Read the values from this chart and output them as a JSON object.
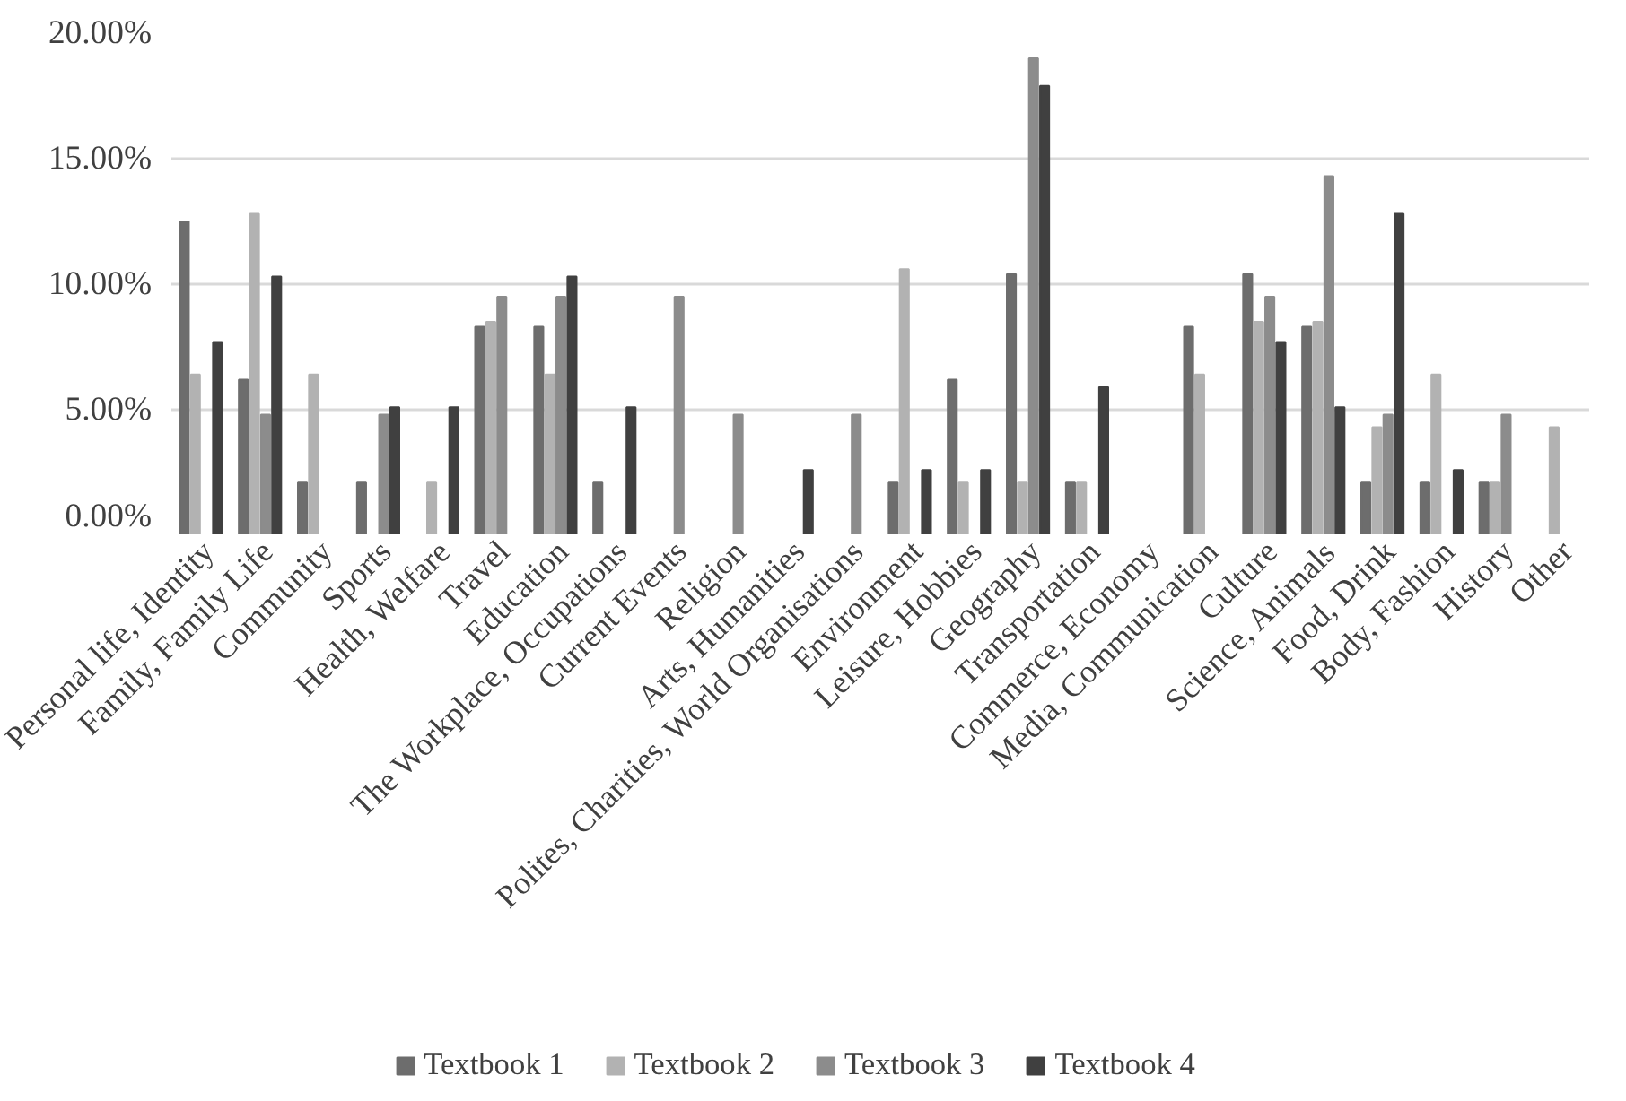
{
  "chart_data": {
    "type": "bar",
    "categories": [
      "Personal life, Identity",
      "Family, Family Life",
      "Community",
      "Sports",
      "Health, Welfare",
      "Travel",
      "Education",
      "The Workplace, Occupations",
      "Current Events",
      "Religion",
      "Arts, Humanities",
      "Polites, Charities, World Organisations",
      "Environment",
      "Leisure, Hobbies",
      "Geography",
      "Transportation",
      "Commerce, Economy",
      "Media, Communication",
      "Culture",
      "Science, Animals",
      "Food, Drink",
      "Body, Fashion",
      "History",
      "Other"
    ],
    "series": [
      {
        "name": "Textbook 1",
        "color": "#6d6d6d",
        "values": [
          12.5,
          6.2,
          2.1,
          2.1,
          0,
          8.3,
          8.3,
          2.1,
          0,
          0,
          0,
          0,
          2.1,
          6.2,
          10.4,
          2.1,
          0,
          8.3,
          10.4,
          8.3,
          2.1,
          2.1,
          2.1,
          0
        ]
      },
      {
        "name": "Textbook 2",
        "color": "#b2b2b2",
        "values": [
          6.4,
          12.8,
          6.4,
          0,
          2.1,
          8.5,
          6.4,
          0,
          0,
          0,
          0,
          0,
          10.6,
          2.1,
          2.1,
          2.1,
          0,
          6.4,
          8.5,
          8.5,
          4.3,
          6.4,
          2.1,
          4.3
        ]
      },
      {
        "name": "Textbook 3",
        "color": "#8c8c8c",
        "values": [
          0,
          4.8,
          0,
          4.8,
          0,
          9.5,
          9.5,
          0,
          9.5,
          4.8,
          0,
          4.8,
          0,
          0,
          19.0,
          0,
          0,
          0,
          9.5,
          14.3,
          4.8,
          0,
          4.8,
          0
        ]
      },
      {
        "name": "Textbook 4",
        "color": "#404040",
        "values": [
          7.7,
          10.3,
          0,
          5.1,
          5.1,
          0,
          10.3,
          5.1,
          0,
          0,
          2.6,
          0,
          2.6,
          2.6,
          17.9,
          5.9,
          0,
          0,
          7.7,
          5.1,
          12.8,
          2.6,
          0,
          0
        ]
      }
    ],
    "ylim": [
      0,
      20
    ],
    "yticks": [
      {
        "value": 0,
        "label": "0.00%"
      },
      {
        "value": 5,
        "label": "5.00%"
      },
      {
        "value": 10,
        "label": "10.00%"
      },
      {
        "value": 15,
        "label": "15.00%"
      },
      {
        "value": 20,
        "label": "20.00%"
      }
    ],
    "grid": "y",
    "legend": "bottom"
  }
}
